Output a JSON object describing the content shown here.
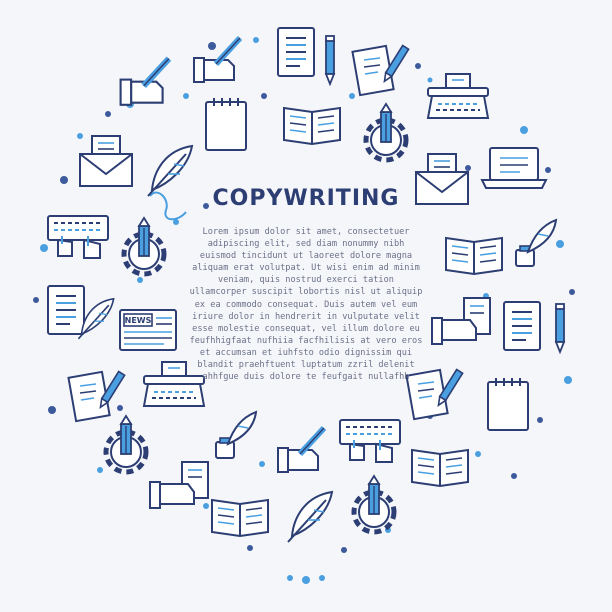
{
  "title": "COPYWRITING",
  "body_text": "Lorem ipsum dolor sit amet, consectetuer adipiscing elit, sed diam nonummy nibh euismod tincidunt ut laoreet dolore magna aliquam erat volutpat. Ut wisi enim ad minim veniam, quis nostrud exerci tation ullamcorper suscipit lobortis nisl ut aliquip ex ea commodo consequat. Duis autem vel eum iriure dolor in hendrerit in vulputate velit esse molestie consequat, vel illum dolore eu feufhhigfaat nufhiia facfhilisis at vero eros et accumsan et iuhfsto odio dignissim qui blandit praehftuent luptatum zzril delenit ahhfgue duis dolore te feufgait nullafhh",
  "news_label": "NEWS",
  "colors": {
    "background": "#f5f6fa",
    "outline": "#2c3e73",
    "accent": "#4a9fe0",
    "dot": "#3c5a9c"
  },
  "icons": [
    "hand-pencil-icon",
    "document-icon",
    "pencil-icon",
    "paper-pencil-icon",
    "notepad-icon",
    "open-book-icon",
    "gear-pencil-icon",
    "typewriter-icon",
    "envelope-letter-icon",
    "quill-icon",
    "laptop-icon",
    "keyboard-typing-icon",
    "newspaper-icon",
    "hand-document-icon",
    "ink-quill-icon"
  ]
}
